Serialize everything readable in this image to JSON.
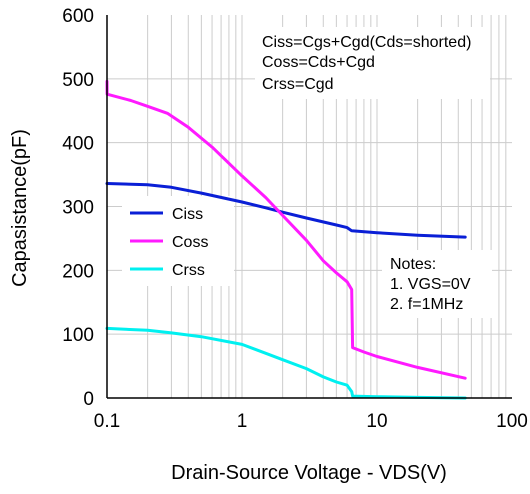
{
  "chart_data": {
    "type": "line",
    "xlabel": "Drain-Source Voltage - VDS(V)",
    "ylabel": "Capasistance(pF)",
    "x_scale": "log",
    "xlim": [
      0.1,
      100
    ],
    "ylim": [
      0,
      600
    ],
    "x_ticks": [
      0.1,
      1,
      10,
      100
    ],
    "x_tick_labels": [
      "0.1",
      "1",
      "10",
      "100"
    ],
    "y_ticks": [
      0,
      100,
      200,
      300,
      400,
      500,
      600
    ],
    "y_tick_labels": [
      "0",
      "100",
      "200",
      "300",
      "400",
      "500",
      "600"
    ],
    "grid": true,
    "legend_position": "middle-left",
    "series": [
      {
        "name": "Ciss",
        "color": "#0a1fd6",
        "points": [
          [
            0.1,
            336
          ],
          [
            0.2,
            334
          ],
          [
            0.3,
            330
          ],
          [
            0.5,
            321
          ],
          [
            1,
            307
          ],
          [
            1.5,
            298
          ],
          [
            2,
            291
          ],
          [
            3,
            282
          ],
          [
            5,
            271
          ],
          [
            6,
            267
          ],
          [
            6.5,
            262
          ],
          [
            10,
            259
          ],
          [
            20,
            255
          ],
          [
            45,
            252
          ]
        ]
      },
      {
        "name": "Coss",
        "color": "#ff1aff",
        "points": [
          [
            0.1,
            496
          ],
          [
            0.1001,
            476
          ],
          [
            0.15,
            466
          ],
          [
            0.2,
            457
          ],
          [
            0.28,
            446
          ],
          [
            0.4,
            424
          ],
          [
            0.6,
            393
          ],
          [
            1,
            348
          ],
          [
            1.5,
            314
          ],
          [
            2,
            286
          ],
          [
            3,
            247
          ],
          [
            4,
            215
          ],
          [
            5,
            196
          ],
          [
            6,
            182
          ],
          [
            6.5,
            170
          ],
          [
            6.6,
            79
          ],
          [
            8,
            72
          ],
          [
            10,
            65
          ],
          [
            20,
            48
          ],
          [
            45,
            31
          ]
        ]
      },
      {
        "name": "Crss",
        "color": "#00f0f0",
        "points": [
          [
            0.1,
            109
          ],
          [
            0.2,
            106
          ],
          [
            0.3,
            102
          ],
          [
            0.5,
            96
          ],
          [
            1,
            84
          ],
          [
            1.5,
            70
          ],
          [
            2,
            60
          ],
          [
            3,
            46
          ],
          [
            4,
            33
          ],
          [
            5,
            25
          ],
          [
            6,
            20
          ],
          [
            6.5,
            10
          ],
          [
            6.6,
            3
          ],
          [
            10,
            2
          ],
          [
            20,
            1
          ],
          [
            45,
            0
          ]
        ]
      }
    ],
    "annotations": {
      "capacitance_definitions": [
        "Ciss=Cgs+Cgd(Cds=shorted)",
        "Coss=Cds+Cgd",
        "Crss=Cgd"
      ],
      "notes": [
        "Notes:",
        "1. VGS=0V",
        "2. f=1MHz"
      ]
    }
  }
}
